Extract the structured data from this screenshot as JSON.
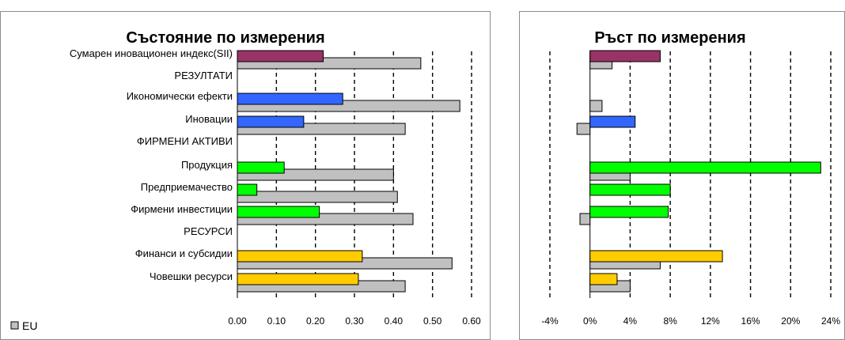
{
  "colors": {
    "eu_bar": "#c0c0c0",
    "summary": "#993366",
    "outputs": "#3366ff",
    "enablers": "#00ff00",
    "resources": "#ffcc00",
    "bar_stroke": "#000000"
  },
  "legend": {
    "label": "EU",
    "icon": "legend-square-icon"
  },
  "chart_data": [
    {
      "type": "bar",
      "orientation": "horizontal",
      "title": "Състояние по измерения",
      "categories": [
        "Сумарен иновационен индекс(SII)",
        "РЕЗУЛТАТИ",
        "Икономически ефекти",
        "Иновации",
        "ФИРМЕНИ АКТИВИ",
        "Продукция",
        "Предприемачество",
        "Фирмени инвестиции",
        "РЕСУРСИ",
        "Финанси и субсидии",
        "Човешки ресурси"
      ],
      "category_colors": [
        "summary",
        null,
        "outputs",
        "outputs",
        null,
        "enablers",
        "enablers",
        "enablers",
        null,
        "resources",
        "resources"
      ],
      "series": [
        {
          "values": [
            0.22,
            null,
            0.27,
            0.17,
            null,
            0.12,
            0.05,
            0.21,
            null,
            0.32,
            0.31
          ]
        },
        {
          "name": "EU",
          "values": [
            0.47,
            null,
            0.57,
            0.43,
            null,
            0.4,
            0.41,
            0.45,
            null,
            0.55,
            0.43
          ]
        }
      ],
      "xlim": [
        0,
        0.6
      ],
      "xticks": [
        "0.00",
        "0.10",
        "0.20",
        "0.30",
        "0.40",
        "0.50",
        "0.60"
      ],
      "grid": "vertical dashed"
    },
    {
      "type": "bar",
      "orientation": "horizontal",
      "title": "Ръст по измерения",
      "category_colors": [
        "summary",
        null,
        "outputs",
        "outputs",
        null,
        "enablers",
        "enablers",
        "enablers",
        null,
        "resources",
        "resources"
      ],
      "series": [
        {
          "values": [
            7.0,
            null,
            null,
            4.5,
            null,
            23.0,
            8.0,
            7.8,
            null,
            13.2,
            2.7
          ]
        },
        {
          "name": "EU",
          "values": [
            2.2,
            null,
            1.2,
            -1.3,
            null,
            4.0,
            null,
            -1.0,
            null,
            7.0,
            4.0
          ]
        }
      ],
      "xlim": [
        -4,
        24
      ],
      "xticks": [
        "-4%",
        "0%",
        "4%",
        "8%",
        "12%",
        "16%",
        "20%",
        "24%"
      ],
      "grid": "vertical dashed"
    }
  ]
}
